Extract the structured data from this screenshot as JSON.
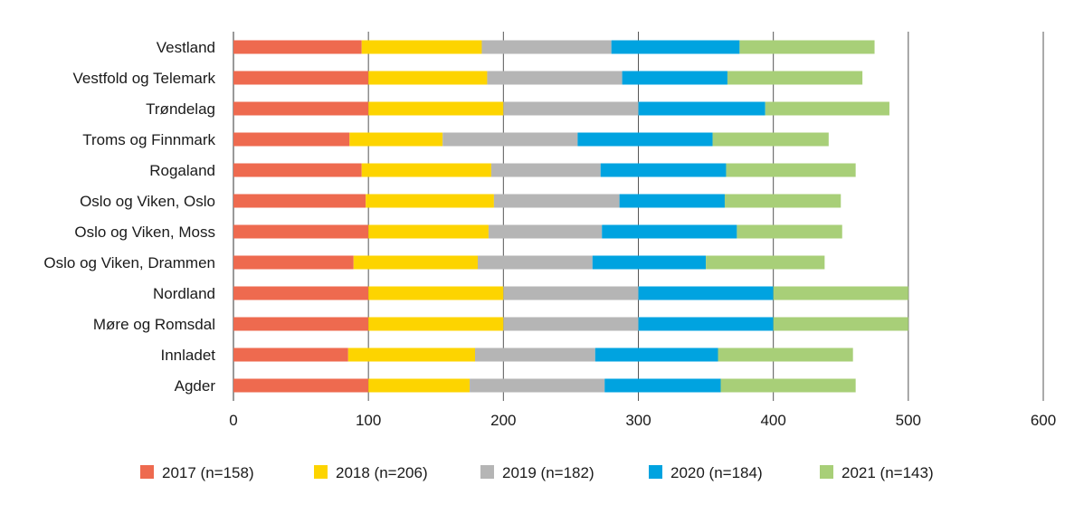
{
  "chart_data": {
    "type": "bar",
    "orientation": "horizontal",
    "stacked": true,
    "title": "",
    "xlabel": "",
    "ylabel": "",
    "xlim": [
      0,
      600
    ],
    "xticks": [
      0,
      100,
      200,
      300,
      400,
      500,
      600
    ],
    "grid": true,
    "legend_position": "bottom",
    "categories": [
      "Vestland",
      "Vestfold og Telemark",
      "Trøndelag",
      "Troms og Finnmark",
      "Rogaland",
      "Oslo og Viken, Oslo",
      "Oslo og Viken, Moss",
      "Oslo og Viken, Drammen",
      "Nordland",
      "Møre og Romsdal",
      "Innladet",
      "Agder"
    ],
    "series": [
      {
        "name": "2017 (n=158)",
        "color": "#ee6a4f",
        "values": [
          95,
          100,
          100,
          86,
          95,
          98,
          100,
          89,
          100,
          100,
          85,
          100
        ]
      },
      {
        "name": "2018 (n=206)",
        "color": "#fdd400",
        "values": [
          89,
          88,
          100,
          69,
          96,
          95,
          89,
          92,
          100,
          100,
          94,
          75
        ]
      },
      {
        "name": "2019 (n=182)",
        "color": "#b5b5b5",
        "values": [
          96,
          100,
          100,
          100,
          81,
          93,
          84,
          85,
          100,
          100,
          89,
          100
        ]
      },
      {
        "name": "2020 (n=184)",
        "color": "#00a3e0",
        "values": [
          95,
          78,
          94,
          100,
          93,
          78,
          100,
          84,
          100,
          100,
          91,
          86
        ]
      },
      {
        "name": "2021 (n=143)",
        "color": "#a8cf78",
        "values": [
          100,
          100,
          92,
          86,
          96,
          86,
          78,
          88,
          100,
          100,
          100,
          100
        ]
      }
    ]
  }
}
